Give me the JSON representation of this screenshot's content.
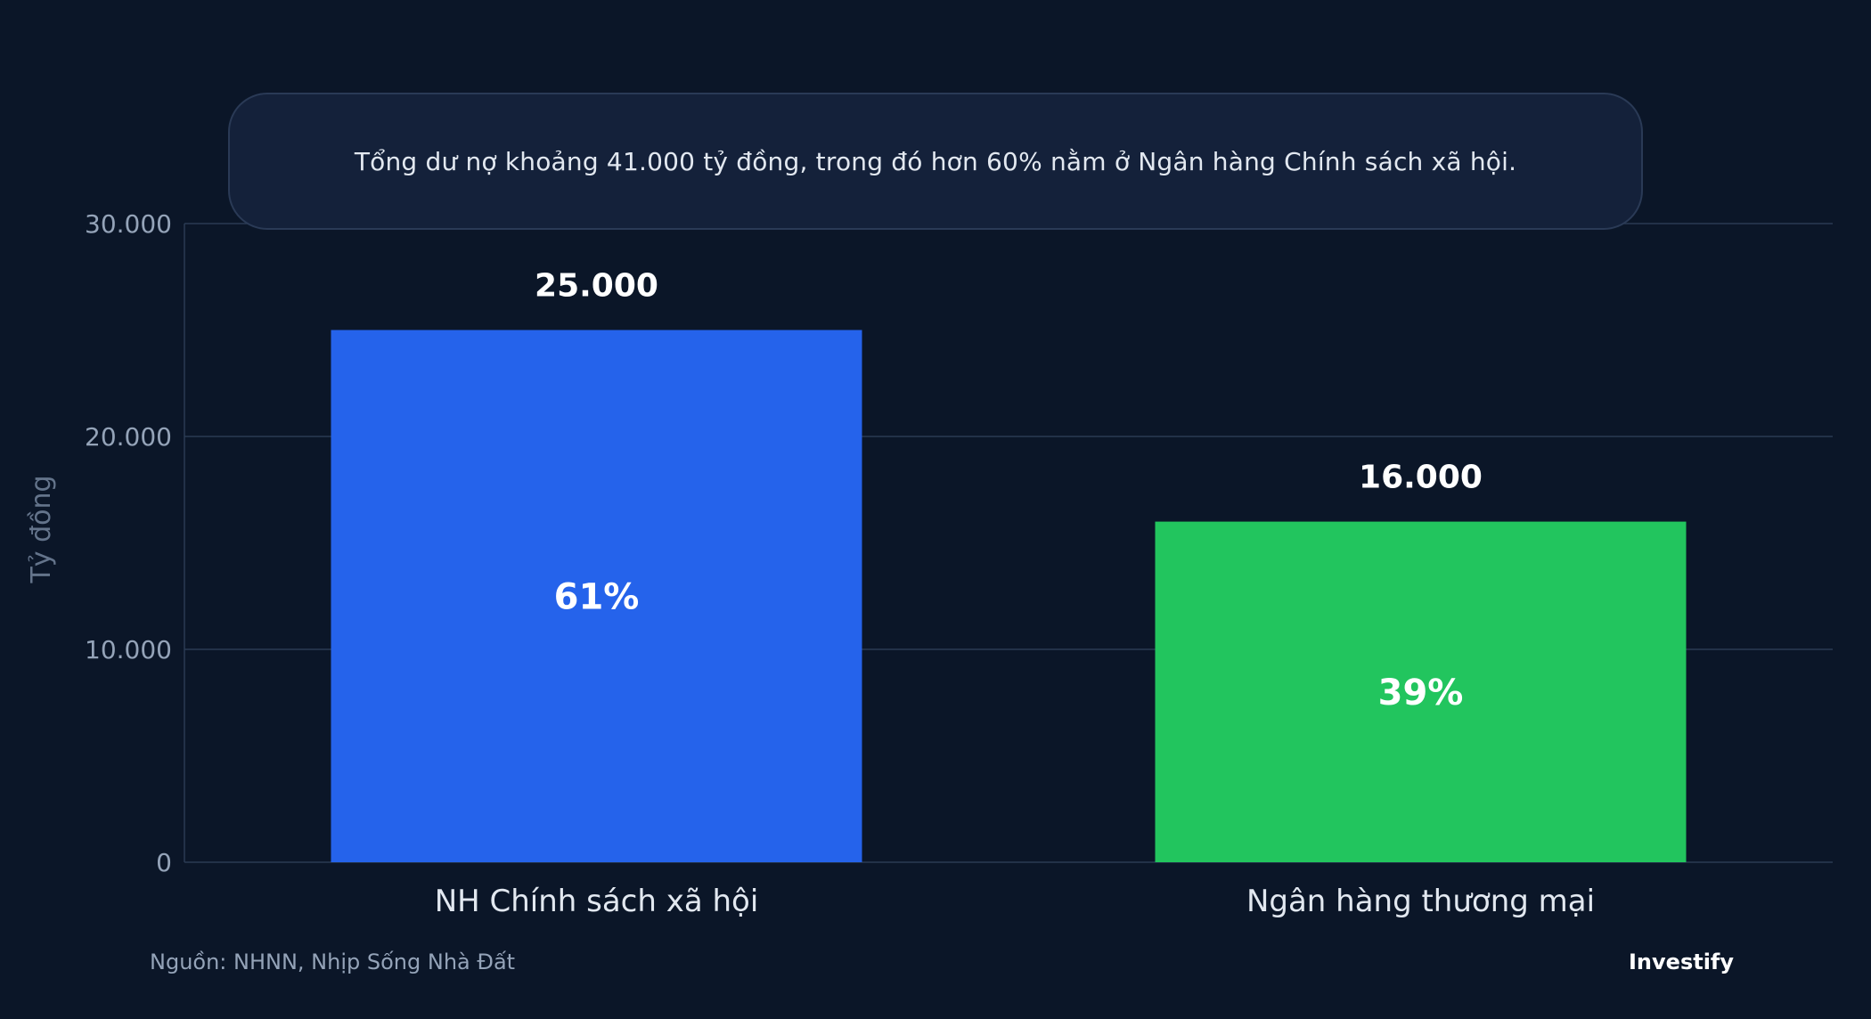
{
  "annotation": "Tổng dư nợ khoảng 41.000 tỷ đồng, trong đó hơn 60% nằm ở Ngân hàng Chính sách xã hội.",
  "footer": {
    "source": "Nguồn: NHNN, Nhịp Sống Nhà Đất",
    "brand": "Investify"
  },
  "colors": {
    "background": "#0b1628",
    "bar_social_policy": "#2563eb",
    "bar_commercial": "#22c55e",
    "grid": "#2b3a52",
    "tick_text": "#94a3b8"
  },
  "chart_data": {
    "type": "bar",
    "title": "",
    "xlabel": "",
    "ylabel": "Tỷ đồng",
    "ylim": [
      0,
      30000
    ],
    "yticks": [
      {
        "value": 0,
        "label": "0"
      },
      {
        "value": 10000,
        "label": "10.000"
      },
      {
        "value": 20000,
        "label": "20.000"
      },
      {
        "value": 30000,
        "label": "30.000"
      }
    ],
    "grid": true,
    "categories": [
      "NH Chính sách xã hội",
      "Ngân hàng thương mại"
    ],
    "values": [
      25000,
      16000
    ],
    "value_labels": [
      "25.000",
      "16.000"
    ],
    "share_labels": [
      "61%",
      "39%"
    ],
    "bar_colors": [
      "#2563eb",
      "#22c55e"
    ]
  }
}
